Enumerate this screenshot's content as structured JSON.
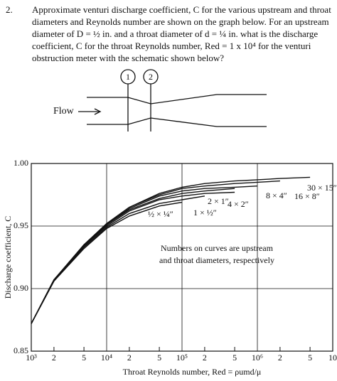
{
  "problem": {
    "number": "2.",
    "lines": [
      "Approximate venturi discharge coefficient, C for the various upstream and throat",
      "diameters and Reynolds number are shown on the graph below.  For an upstream",
      "diameter of D = ½ in. and a throat diameter of d = ¼ in. what is the discharge",
      "coefficient, C for the throat Reynolds number, Red = 1 x 10⁴ for the venturi",
      "obstruction meter with the schematic shown below?"
    ]
  },
  "schematic": {
    "station_1": "1",
    "station_2": "2",
    "flow_label": "Flow"
  },
  "chart_data": {
    "type": "line",
    "xlabel": "Throat Reynolds number, Red = ρumd/μ",
    "ylabel": "Discharge coefficient, C",
    "annotation": [
      "Numbers on curves are upstream",
      "and throat diameters, respectively"
    ],
    "log_x": true,
    "grid": true,
    "x": [
      1000,
      2000,
      5000,
      10000,
      20000,
      50000,
      100000,
      200000,
      500000,
      1000000,
      2000000,
      5000000
    ],
    "xlim": [
      1000,
      10000000
    ],
    "xticks": [
      {
        "value": 1000,
        "label": "10³"
      },
      {
        "value": 2000,
        "label": "2"
      },
      {
        "value": 5000,
        "label": "5"
      },
      {
        "value": 10000,
        "label": "10⁴"
      },
      {
        "value": 20000,
        "label": "2"
      },
      {
        "value": 50000,
        "label": "5"
      },
      {
        "value": 100000,
        "label": "10⁵"
      },
      {
        "value": 200000,
        "label": "2"
      },
      {
        "value": 500000,
        "label": "5"
      },
      {
        "value": 1000000,
        "label": "10⁶"
      },
      {
        "value": 2000000,
        "label": "2"
      },
      {
        "value": 5000000,
        "label": "5"
      },
      {
        "value": 10000000,
        "label": "10"
      }
    ],
    "ylim": [
      0.85,
      1.0
    ],
    "yticks": [
      0.85,
      {
        "value": 0.9,
        "label": "0.90"
      },
      0.95,
      {
        "value": 1.0,
        "label": "1.00"
      }
    ],
    "series": [
      {
        "name": "½ × ¼″",
        "color": "#111",
        "values": [
          0.872,
          0.906,
          0.932,
          0.948,
          0.958,
          0.966,
          0.969,
          null,
          null,
          null,
          null,
          null
        ]
      },
      {
        "name": "1 × ½″",
        "color": "#111",
        "values": [
          0.872,
          0.906,
          0.933,
          0.949,
          0.96,
          0.968,
          0.971,
          0.974,
          null,
          null,
          null,
          null
        ]
      },
      {
        "name": "2 × 1″",
        "color": "#111",
        "values": [
          0.872,
          0.907,
          0.934,
          0.95,
          0.962,
          0.971,
          0.974,
          0.976,
          0.977,
          null,
          null,
          null
        ]
      },
      {
        "name": "4 × 2″",
        "color": "#111",
        "values": [
          0.872,
          0.907,
          0.934,
          0.951,
          0.963,
          0.972,
          0.976,
          0.978,
          0.98,
          null,
          null,
          null
        ]
      },
      {
        "name": "8 × 4″",
        "color": "#111",
        "values": [
          0.872,
          0.907,
          0.935,
          0.951,
          0.964,
          0.974,
          0.978,
          0.98,
          0.981,
          0.982,
          null,
          null
        ]
      },
      {
        "name": "16 × 8″",
        "color": "#111",
        "values": [
          0.872,
          0.907,
          0.935,
          0.952,
          0.965,
          0.975,
          0.98,
          0.982,
          0.984,
          0.985,
          0.986,
          null
        ]
      },
      {
        "name": "30 × 15″",
        "color": "#111",
        "values": [
          0.872,
          0.907,
          0.935,
          0.952,
          0.965,
          0.976,
          0.981,
          0.984,
          0.986,
          0.987,
          0.988,
          0.989
        ]
      }
    ]
  }
}
